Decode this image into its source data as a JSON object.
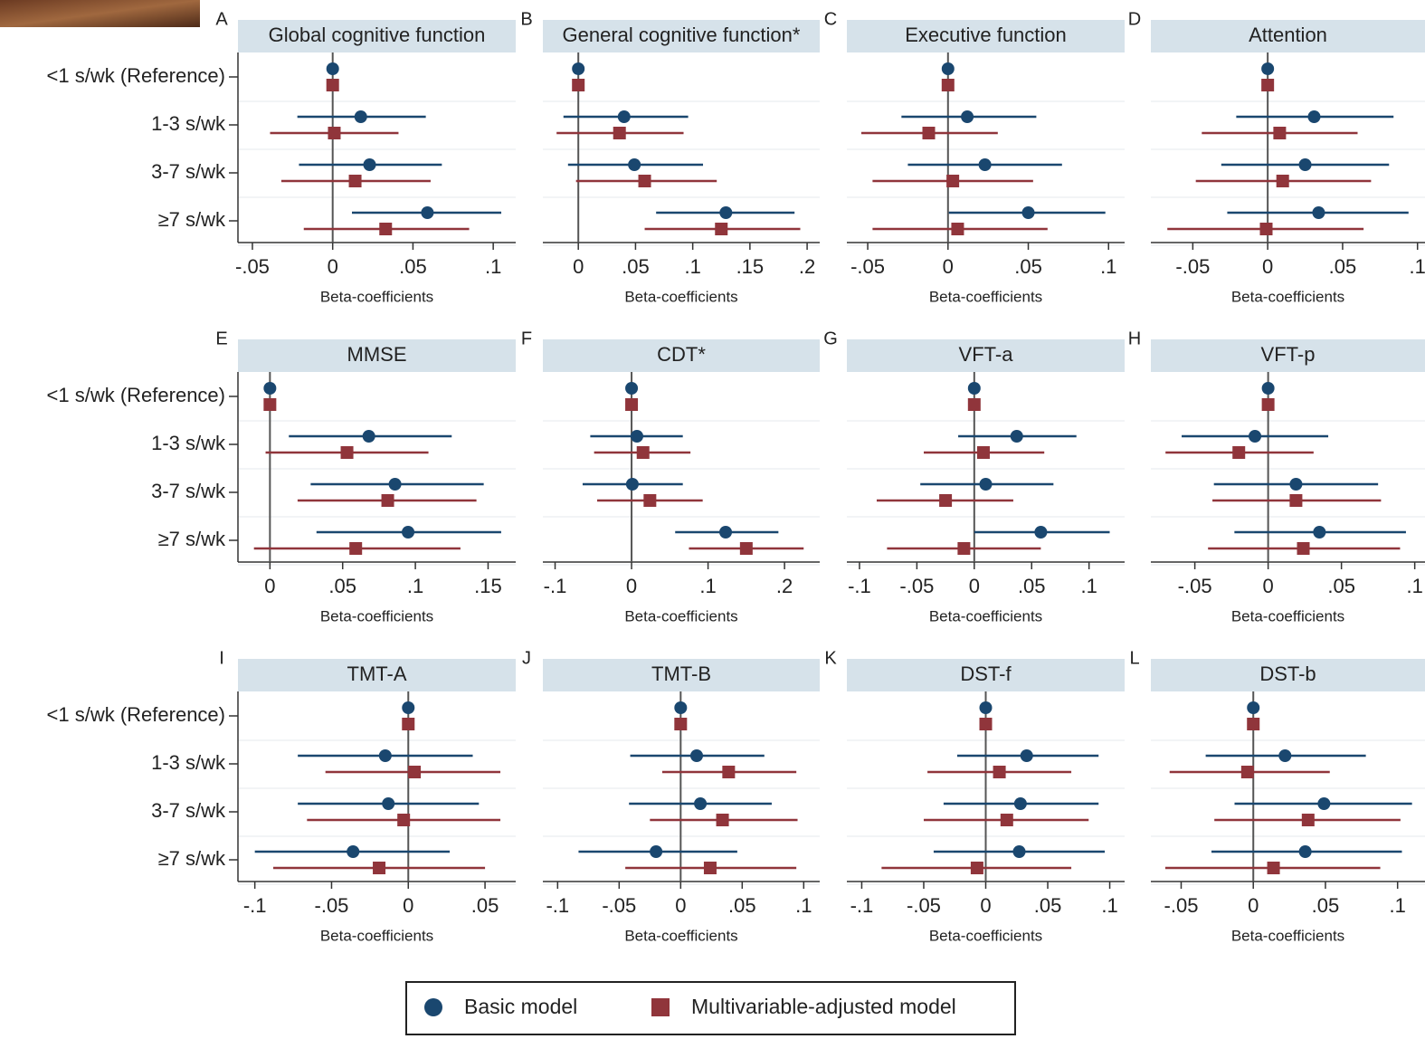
{
  "chart_data": [
    {
      "type": "forest",
      "panel_label": "A",
      "title": "Global cognitive function",
      "categories": [
        "<1 s/wk (Reference)",
        "1-3 s/wk",
        "3-7 s/wk",
        "≥7 s/wk"
      ],
      "xlabel": "Beta-coefficients",
      "xlim": [
        -0.059,
        0.114
      ],
      "xticks": [
        {
          "value": -0.05,
          "label": "-.05"
        },
        0,
        {
          "value": 0.05,
          "label": ".05"
        },
        {
          "value": 0.1,
          "label": ".1"
        }
      ],
      "series": [
        {
          "values": [
            0,
            0.0175,
            0.023,
            0.059
          ],
          "lower": [
            0,
            -0.022,
            -0.021,
            0.012
          ],
          "upper": [
            0,
            0.058,
            0.068,
            0.105
          ]
        },
        {
          "values": [
            0,
            0.001,
            0.014,
            0.033
          ],
          "lower": [
            0,
            -0.039,
            -0.032,
            -0.018
          ],
          "upper": [
            0,
            0.041,
            0.061,
            0.085
          ]
        }
      ]
    },
    {
      "type": "forest",
      "panel_label": "B",
      "title": "General cognitive function*",
      "xlabel": "Beta-coefficients",
      "xlim": [
        -0.031,
        0.211
      ],
      "xticks": [
        0,
        {
          "value": 0.05,
          "label": ".05"
        },
        {
          "value": 0.1,
          "label": ".1"
        },
        {
          "value": 0.15,
          "label": ".15"
        },
        {
          "value": 0.2,
          "label": ".2"
        }
      ],
      "series": [
        {
          "values": [
            0,
            0.04,
            0.049,
            0.129
          ],
          "lower": [
            0,
            -0.013,
            -0.009,
            0.068
          ],
          "upper": [
            0,
            0.096,
            0.109,
            0.189
          ]
        },
        {
          "values": [
            0,
            0.036,
            0.058,
            0.125
          ],
          "lower": [
            0,
            -0.019,
            -0.002,
            0.058
          ],
          "upper": [
            0,
            0.092,
            0.121,
            0.194
          ]
        }
      ]
    },
    {
      "type": "forest",
      "panel_label": "C",
      "title": "Executive function",
      "xlabel": "Beta-coefficients",
      "xlim": [
        -0.063,
        0.11
      ],
      "xticks": [
        {
          "value": -0.05,
          "label": "-.05"
        },
        0,
        {
          "value": 0.05,
          "label": ".05"
        },
        {
          "value": 0.1,
          "label": ".1"
        }
      ],
      "series": [
        {
          "values": [
            0,
            0.012,
            0.023,
            0.05
          ],
          "lower": [
            0,
            -0.029,
            -0.025,
            0.0005
          ],
          "upper": [
            0,
            0.055,
            0.071,
            0.098
          ]
        },
        {
          "values": [
            0,
            -0.012,
            0.003,
            0.006
          ],
          "lower": [
            0,
            -0.054,
            -0.047,
            -0.047
          ],
          "upper": [
            0,
            0.031,
            0.053,
            0.062
          ]
        }
      ]
    },
    {
      "type": "forest",
      "panel_label": "D",
      "title": "Attention",
      "xlabel": "Beta-coefficients",
      "xlim": [
        -0.078,
        0.105
      ],
      "xticks": [
        {
          "value": -0.05,
          "label": "-.05"
        },
        0,
        {
          "value": 0.05,
          "label": ".05"
        },
        {
          "value": 0.1,
          "label": ".1"
        }
      ],
      "series": [
        {
          "values": [
            0,
            0.031,
            0.025,
            0.034
          ],
          "lower": [
            0,
            -0.021,
            -0.031,
            -0.027
          ],
          "upper": [
            0,
            0.084,
            0.081,
            0.094
          ]
        },
        {
          "values": [
            0,
            0.008,
            0.01,
            -0.001
          ],
          "lower": [
            0,
            -0.044,
            -0.048,
            -0.067
          ],
          "upper": [
            0,
            0.06,
            0.069,
            0.064
          ]
        }
      ]
    },
    {
      "type": "forest",
      "panel_label": "E",
      "title": "MMSE",
      "categories": [
        "<1 s/wk (Reference)",
        "1-3 s/wk",
        "3-7 s/wk",
        "≥7 s/wk"
      ],
      "xlabel": "Beta-coefficients",
      "xlim": [
        -0.022,
        0.169
      ],
      "xticks": [
        0,
        {
          "value": 0.05,
          "label": ".05"
        },
        {
          "value": 0.1,
          "label": ".1"
        },
        {
          "value": 0.15,
          "label": ".15"
        }
      ],
      "series": [
        {
          "values": [
            0,
            0.068,
            0.086,
            0.095
          ],
          "lower": [
            0,
            0.013,
            0.028,
            0.032
          ],
          "upper": [
            0,
            0.125,
            0.147,
            0.159
          ]
        },
        {
          "values": [
            0,
            0.053,
            0.081,
            0.059
          ],
          "lower": [
            0,
            -0.003,
            0.019,
            -0.011
          ],
          "upper": [
            0,
            0.109,
            0.142,
            0.131
          ]
        }
      ]
    },
    {
      "type": "forest",
      "panel_label": "F",
      "title": "CDT*",
      "xlabel": "Beta-coefficients",
      "xlim": [
        -0.116,
        0.246
      ],
      "xticks": [
        {
          "value": -0.1,
          "label": "-.1"
        },
        0,
        {
          "value": 0.1,
          "label": ".1"
        },
        {
          "value": 0.2,
          "label": ".2"
        }
      ],
      "series": [
        {
          "values": [
            0,
            0.007,
            0.001,
            0.123
          ],
          "lower": [
            0,
            -0.054,
            -0.064,
            0.057
          ],
          "upper": [
            0,
            0.067,
            0.067,
            0.192
          ]
        },
        {
          "values": [
            0,
            0.015,
            0.024,
            0.15
          ],
          "lower": [
            0,
            -0.049,
            -0.045,
            0.075
          ],
          "upper": [
            0,
            0.077,
            0.093,
            0.225
          ]
        }
      ]
    },
    {
      "type": "forest",
      "panel_label": "G",
      "title": "VFT-a",
      "xlabel": "Beta-coefficients",
      "xlim": [
        -0.111,
        0.131
      ],
      "xticks": [
        {
          "value": -0.1,
          "label": "-.1"
        },
        {
          "value": -0.05,
          "label": "-.05"
        },
        0,
        {
          "value": 0.05,
          "label": ".05"
        },
        {
          "value": 0.1,
          "label": ".1"
        }
      ],
      "series": [
        {
          "values": [
            0,
            0.037,
            0.01,
            0.058
          ],
          "lower": [
            0,
            -0.014,
            -0.047,
            0
          ],
          "upper": [
            0,
            0.089,
            0.069,
            0.118
          ]
        },
        {
          "values": [
            0,
            0.008,
            -0.025,
            -0.009
          ],
          "lower": [
            0,
            -0.044,
            -0.085,
            -0.076
          ],
          "upper": [
            0,
            0.061,
            0.034,
            0.058
          ]
        }
      ]
    },
    {
      "type": "forest",
      "panel_label": "H",
      "title": "VFT-p",
      "xlabel": "Beta-coefficients",
      "xlim": [
        -0.08,
        0.107
      ],
      "xticks": [
        {
          "value": -0.05,
          "label": "-.05"
        },
        0,
        {
          "value": 0.05,
          "label": ".05"
        },
        {
          "value": 0.1,
          "label": ".1"
        }
      ],
      "series": [
        {
          "values": [
            0,
            -0.009,
            0.019,
            0.035
          ],
          "lower": [
            0,
            -0.059,
            -0.037,
            -0.023
          ],
          "upper": [
            0,
            0.041,
            0.075,
            0.094
          ]
        },
        {
          "values": [
            0,
            -0.02,
            0.019,
            0.024
          ],
          "lower": [
            0,
            -0.07,
            -0.038,
            -0.041
          ],
          "upper": [
            0,
            0.031,
            0.077,
            0.09
          ]
        }
      ]
    },
    {
      "type": "forest",
      "panel_label": "I",
      "title": "TMT-A",
      "categories": [
        "<1 s/wk (Reference)",
        "1-3 s/wk",
        "3-7 s/wk",
        "≥7 s/wk"
      ],
      "xlabel": "Beta-coefficients",
      "xlim": [
        -0.111,
        0.07
      ],
      "xticks": [
        {
          "value": -0.1,
          "label": "-.1"
        },
        {
          "value": -0.05,
          "label": "-.05"
        },
        0,
        {
          "value": 0.05,
          "label": ".05"
        }
      ],
      "series": [
        {
          "values": [
            0,
            -0.015,
            -0.013,
            -0.036
          ],
          "lower": [
            0,
            -0.072,
            -0.072,
            -0.1
          ],
          "upper": [
            0,
            0.042,
            0.046,
            0.027
          ]
        },
        {
          "values": [
            0,
            0.004,
            -0.003,
            -0.019
          ],
          "lower": [
            0,
            -0.054,
            -0.066,
            -0.088
          ],
          "upper": [
            0,
            0.06,
            0.06,
            0.05
          ]
        }
      ]
    },
    {
      "type": "forest",
      "panel_label": "J",
      "title": "TMT-B",
      "xlabel": "Beta-coefficients",
      "xlim": [
        -0.112,
        0.113
      ],
      "xticks": [
        {
          "value": -0.1,
          "label": "-.1"
        },
        {
          "value": -0.05,
          "label": "-.05"
        },
        0,
        {
          "value": 0.05,
          "label": ".05"
        },
        {
          "value": 0.1,
          "label": ".1"
        }
      ],
      "series": [
        {
          "values": [
            0,
            0.013,
            0.016,
            -0.02
          ],
          "lower": [
            0,
            -0.041,
            -0.042,
            -0.083
          ],
          "upper": [
            0,
            0.068,
            0.074,
            0.046
          ]
        },
        {
          "values": [
            0,
            0.039,
            0.034,
            0.024
          ],
          "lower": [
            0,
            -0.015,
            -0.025,
            -0.045
          ],
          "upper": [
            0,
            0.094,
            0.095,
            0.094
          ]
        }
      ]
    },
    {
      "type": "forest",
      "panel_label": "K",
      "title": "DST-f",
      "xlabel": "Beta-coefficients",
      "xlim": [
        -0.112,
        0.112
      ],
      "xticks": [
        {
          "value": -0.1,
          "label": "-.1"
        },
        {
          "value": -0.05,
          "label": "-.05"
        },
        0,
        {
          "value": 0.05,
          "label": ".05"
        },
        {
          "value": 0.1,
          "label": ".1"
        }
      ],
      "series": [
        {
          "values": [
            0,
            0.033,
            0.028,
            0.027
          ],
          "lower": [
            0,
            -0.023,
            -0.034,
            -0.042
          ],
          "upper": [
            0,
            0.091,
            0.091,
            0.096
          ]
        },
        {
          "values": [
            0,
            0.011,
            0.017,
            -0.007
          ],
          "lower": [
            0,
            -0.047,
            -0.05,
            -0.084
          ],
          "upper": [
            0,
            0.069,
            0.083,
            0.069
          ]
        }
      ]
    },
    {
      "type": "forest",
      "panel_label": "L",
      "title": "DST-b",
      "xlabel": "Beta-coefficients",
      "xlim": [
        -0.071,
        0.119
      ],
      "xticks": [
        {
          "value": -0.05,
          "label": "-.05"
        },
        0,
        {
          "value": 0.05,
          "label": ".05"
        },
        {
          "value": 0.1,
          "label": ".1"
        }
      ],
      "series": [
        {
          "values": [
            0,
            0.022,
            0.049,
            0.036
          ],
          "lower": [
            0,
            -0.033,
            -0.013,
            -0.029
          ],
          "upper": [
            0,
            0.078,
            0.11,
            0.103
          ]
        },
        {
          "values": [
            0,
            -0.004,
            0.038,
            0.014
          ],
          "lower": [
            0,
            -0.058,
            -0.027,
            -0.061
          ],
          "upper": [
            0,
            0.053,
            0.102,
            0.088
          ]
        }
      ]
    }
  ],
  "legend": [
    {
      "name": "Basic model",
      "color": "#1a476f"
    },
    {
      "name": "Multivariable-adjusted model",
      "color": "#90353b"
    }
  ]
}
